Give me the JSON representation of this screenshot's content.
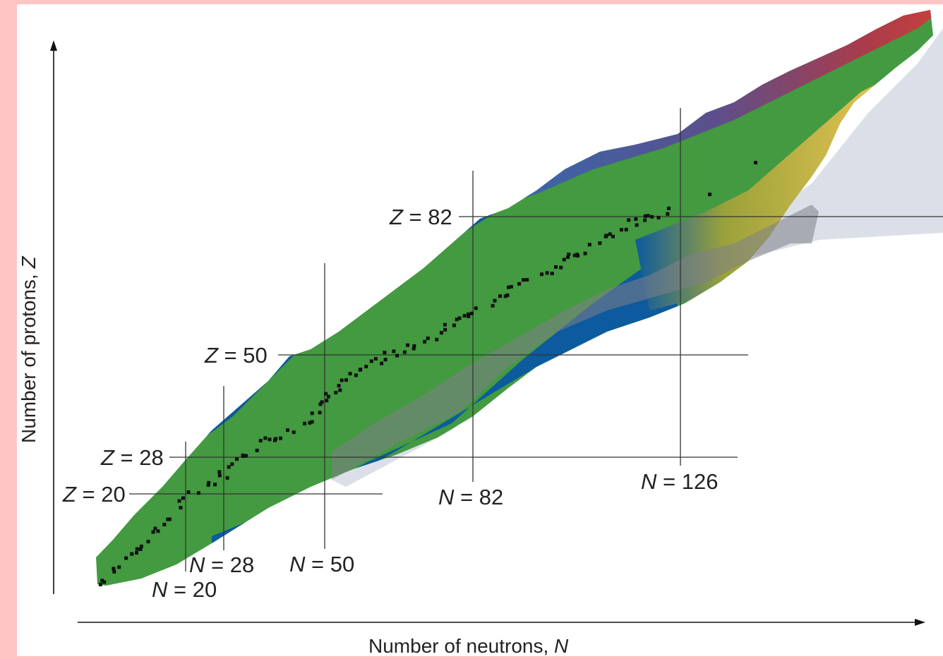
{
  "chart_data": {
    "type": "heatmap",
    "title": "",
    "xlabel": "Number of neutrons, N",
    "ylabel": "Number of protons, Z",
    "xlabel_parts": {
      "text": "Number of neutrons, ",
      "symbol": "N"
    },
    "ylabel_parts": {
      "text": "Number of protons, ",
      "symbol": "Z"
    },
    "magic_numbers_neutrons": [
      20,
      28,
      50,
      82,
      126
    ],
    "magic_numbers_protons": [
      20,
      28,
      50,
      82
    ],
    "magic_labels_neutrons": [
      {
        "symbol": "N",
        "value": "20"
      },
      {
        "symbol": "N",
        "value": "28"
      },
      {
        "symbol": "N",
        "value": "50"
      },
      {
        "symbol": "N",
        "value": "82"
      },
      {
        "symbol": "N",
        "value": "126"
      }
    ],
    "magic_labels_protons": [
      {
        "symbol": "Z",
        "value": "20"
      },
      {
        "symbol": "Z",
        "value": "28"
      },
      {
        "symbol": "Z",
        "value": "50"
      },
      {
        "symbol": "Z",
        "value": "82"
      }
    ],
    "grid": false,
    "legend": "none",
    "region_colors": {
      "stable": "#111111",
      "beta_minus_neutron_rich": "#0d5a9e",
      "beta_plus_proton_rich": "#439a40",
      "alpha": "#e9c453",
      "fission": "#c9403b",
      "proton_drip": "#4a4f8c",
      "unknown_predicted": "#dbe0e8",
      "r_process_path": "#8e8e94"
    }
  }
}
